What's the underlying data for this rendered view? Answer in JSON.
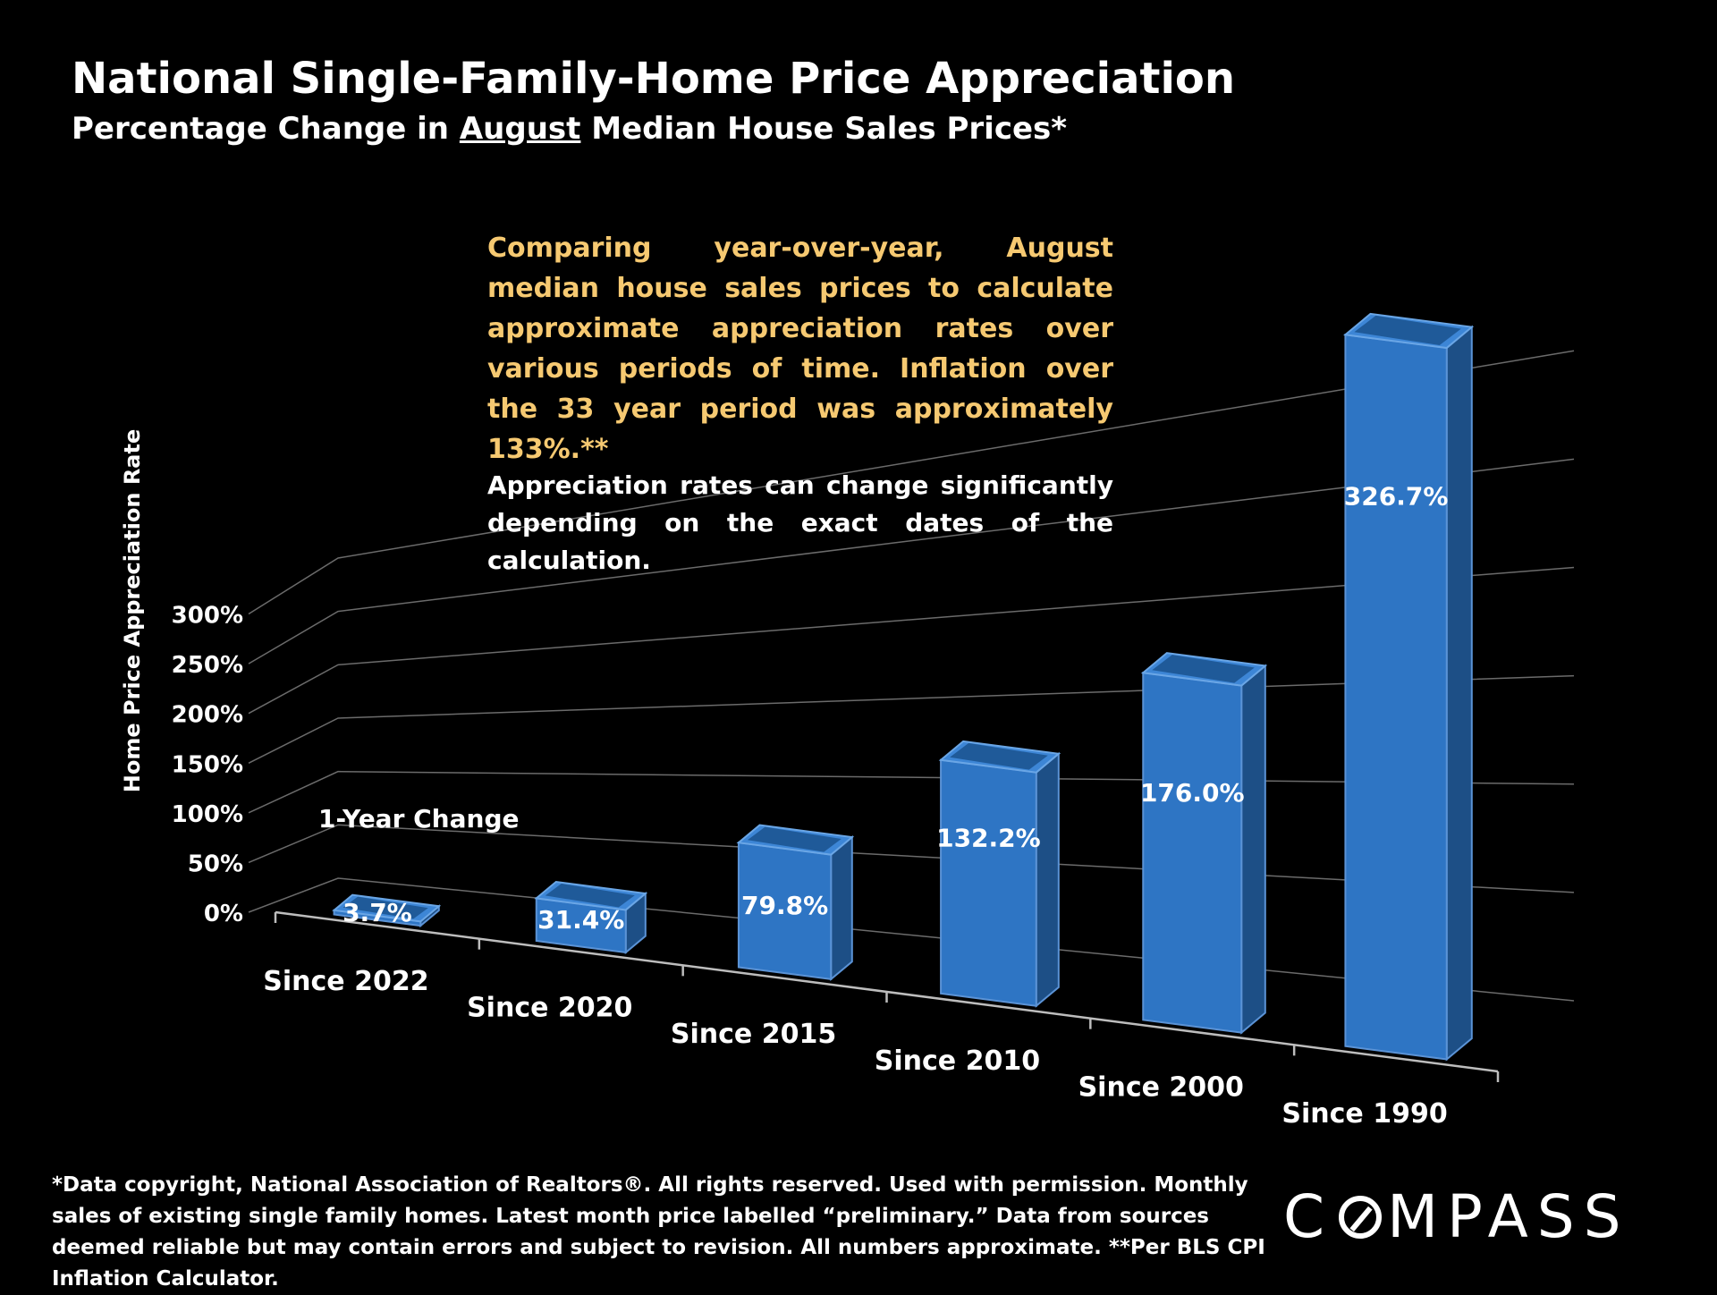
{
  "header": {
    "title": "National Single-Family-Home Price Appreciation",
    "subtitle_pre": "Percentage Change in ",
    "subtitle_month": "August",
    "subtitle_post": " Median House Sales Prices*"
  },
  "notes": {
    "note1": "Comparing year-over-year, August median house sales prices to calculate approximate appreciation rates over various periods of time. Inflation over the 33 year period was approximately 133%.**",
    "note2": "Appreciation rates can change significantly depending on the exact dates of the calculation."
  },
  "chart_data": {
    "type": "bar",
    "title": "National Single-Family-Home Price Appreciation",
    "subtitle": "Percentage Change in August Median House Sales Prices*",
    "ylabel": "Home Price Appreciation Rate",
    "xlabel": "",
    "ylim": [
      0,
      300
    ],
    "yticks": [
      "0%",
      "50%",
      "100%",
      "150%",
      "200%",
      "250%",
      "300%"
    ],
    "ytick_values": [
      0,
      50,
      100,
      150,
      200,
      250,
      300
    ],
    "categories": [
      "Since 2022",
      "Since 2020",
      "Since 2015",
      "Since 2010",
      "Since 2000",
      "Since 1990"
    ],
    "values": [
      3.7,
      31.4,
      79.8,
      132.2,
      176.0,
      326.7
    ],
    "data_labels": [
      "3.7%",
      "31.4%",
      "79.8%",
      "132.2%",
      "176.0%",
      "326.7%"
    ],
    "annotation": "1-Year Change",
    "bar_color": "#2e75c4",
    "grid": true,
    "style": "3d-column"
  },
  "footer": {
    "footnote": "*Data copyright, National Association of Realtors®. All rights reserved. Used with permission. Monthly sales of existing single family homes. Latest month price labelled “preliminary.” Data from sources deemed reliable but may contain errors and subject to revision. All numbers  approximate. **Per BLS CPI Inflation Calculator.",
    "logo_pre": "C",
    "logo_post": "MPASS"
  }
}
